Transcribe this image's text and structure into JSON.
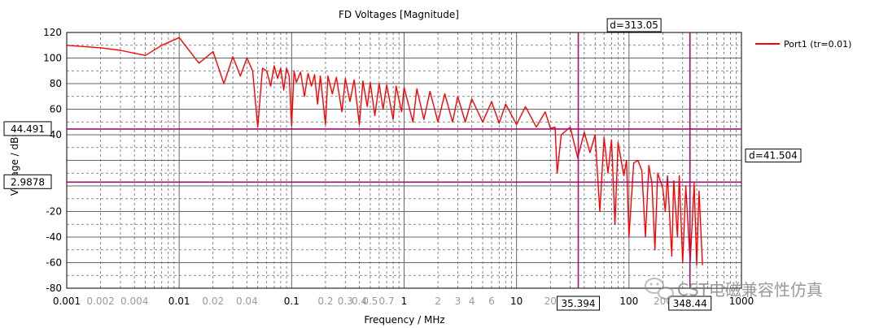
{
  "chart_data": {
    "type": "line",
    "title": "FD Voltages [Magnitude]",
    "xlabel": "Frequency / MHz",
    "ylabel": "Voltage / dBuV",
    "x_scale": "log",
    "xlim": [
      0.001,
      1000
    ],
    "ylim": [
      -80,
      120
    ],
    "grid": true,
    "legend_position": "top-right",
    "x_ticks": [
      {
        "value": 0.001,
        "label": "0.001",
        "major": true
      },
      {
        "value": 0.002,
        "label": "0.002",
        "major": false
      },
      {
        "value": 0.004,
        "label": "0.004",
        "major": false
      },
      {
        "value": 0.01,
        "label": "0.01",
        "major": true
      },
      {
        "value": 0.02,
        "label": "0.02",
        "major": false
      },
      {
        "value": 0.04,
        "label": "0.04",
        "major": false
      },
      {
        "value": 0.1,
        "label": "0.1",
        "major": true
      },
      {
        "value": 0.2,
        "label": "0.2",
        "major": false
      },
      {
        "value": 0.3,
        "label": "0.3",
        "major": false
      },
      {
        "value": 0.4,
        "label": "0.4",
        "major": false
      },
      {
        "value": 0.5,
        "label": "0.5",
        "major": false
      },
      {
        "value": 0.7,
        "label": "0.7",
        "major": false
      },
      {
        "value": 1,
        "label": "1",
        "major": true
      },
      {
        "value": 2,
        "label": "2",
        "major": false
      },
      {
        "value": 3,
        "label": "3",
        "major": false
      },
      {
        "value": 4,
        "label": "4",
        "major": false
      },
      {
        "value": 6,
        "label": "6",
        "major": false
      },
      {
        "value": 10,
        "label": "10",
        "major": true
      },
      {
        "value": 20,
        "label": "20",
        "major": false
      },
      {
        "value": 100,
        "label": "100",
        "major": true
      },
      {
        "value": 200,
        "label": "200",
        "major": false
      },
      {
        "value": 1000,
        "label": "1000",
        "major": true
      }
    ],
    "y_ticks": [
      {
        "value": 120,
        "label": "120"
      },
      {
        "value": 100,
        "label": "100"
      },
      {
        "value": 80,
        "label": "80"
      },
      {
        "value": 60,
        "label": "60"
      },
      {
        "value": 40,
        "label": "40"
      },
      {
        "value": 20,
        "label": ""
      },
      {
        "value": 0,
        "label": ""
      },
      {
        "value": -20,
        "label": "-20"
      },
      {
        "value": -40,
        "label": "-40"
      },
      {
        "value": -60,
        "label": "-60"
      },
      {
        "value": -80,
        "label": "-80"
      }
    ],
    "series": [
      {
        "name": "Port1 (tr=0.01)",
        "color": "#ff0000",
        "points": [
          [
            0.001,
            110
          ],
          [
            0.002,
            108
          ],
          [
            0.003,
            106
          ],
          [
            0.005,
            102
          ],
          [
            0.007,
            110
          ],
          [
            0.01,
            116
          ],
          [
            0.015,
            96
          ],
          [
            0.02,
            105
          ],
          [
            0.025,
            80
          ],
          [
            0.03,
            101
          ],
          [
            0.035,
            86
          ],
          [
            0.04,
            100
          ],
          [
            0.045,
            90
          ],
          [
            0.05,
            46
          ],
          [
            0.055,
            92
          ],
          [
            0.06,
            90
          ],
          [
            0.065,
            78
          ],
          [
            0.07,
            94
          ],
          [
            0.075,
            84
          ],
          [
            0.08,
            92
          ],
          [
            0.085,
            75
          ],
          [
            0.09,
            92
          ],
          [
            0.095,
            86
          ],
          [
            0.1,
            47
          ],
          [
            0.105,
            90
          ],
          [
            0.11,
            81
          ],
          [
            0.12,
            89
          ],
          [
            0.13,
            70
          ],
          [
            0.14,
            88
          ],
          [
            0.15,
            78
          ],
          [
            0.16,
            87
          ],
          [
            0.17,
            64
          ],
          [
            0.18,
            86
          ],
          [
            0.2,
            48
          ],
          [
            0.21,
            86
          ],
          [
            0.23,
            72
          ],
          [
            0.25,
            85
          ],
          [
            0.28,
            58
          ],
          [
            0.3,
            84
          ],
          [
            0.33,
            66
          ],
          [
            0.36,
            83
          ],
          [
            0.4,
            48
          ],
          [
            0.43,
            82
          ],
          [
            0.47,
            62
          ],
          [
            0.5,
            81
          ],
          [
            0.55,
            55
          ],
          [
            0.6,
            80
          ],
          [
            0.65,
            60
          ],
          [
            0.7,
            79
          ],
          [
            0.8,
            52
          ],
          [
            0.85,
            78
          ],
          [
            0.95,
            58
          ],
          [
            1,
            77
          ],
          [
            1.2,
            50
          ],
          [
            1.3,
            76
          ],
          [
            1.5,
            52
          ],
          [
            1.7,
            74
          ],
          [
            2,
            50
          ],
          [
            2.3,
            72
          ],
          [
            2.7,
            50
          ],
          [
            3,
            70
          ],
          [
            3.5,
            50
          ],
          [
            4,
            68
          ],
          [
            5,
            50
          ],
          [
            6,
            66
          ],
          [
            7,
            49
          ],
          [
            8,
            64
          ],
          [
            10,
            48
          ],
          [
            12,
            62
          ],
          [
            15,
            46
          ],
          [
            18,
            58
          ],
          [
            20,
            45
          ],
          [
            22,
            46
          ],
          [
            23,
            10
          ],
          [
            25,
            40
          ],
          [
            30,
            46
          ],
          [
            35,
            22
          ],
          [
            40,
            42
          ],
          [
            45,
            26
          ],
          [
            50,
            40
          ],
          [
            55,
            -20
          ],
          [
            60,
            38
          ],
          [
            65,
            10
          ],
          [
            70,
            36
          ],
          [
            75,
            -30
          ],
          [
            80,
            34
          ],
          [
            90,
            8
          ],
          [
            95,
            20
          ],
          [
            100,
            -40
          ],
          [
            110,
            18
          ],
          [
            120,
            20
          ],
          [
            130,
            12
          ],
          [
            140,
            -40
          ],
          [
            150,
            16
          ],
          [
            160,
            2
          ],
          [
            170,
            -50
          ],
          [
            180,
            10
          ],
          [
            200,
            -2
          ],
          [
            210,
            -20
          ],
          [
            220,
            8
          ],
          [
            240,
            -55
          ],
          [
            250,
            4
          ],
          [
            270,
            -40
          ],
          [
            280,
            8
          ],
          [
            300,
            -60
          ],
          [
            320,
            0
          ],
          [
            350,
            -60
          ],
          [
            380,
            2
          ],
          [
            400,
            -62
          ],
          [
            420,
            -4
          ],
          [
            450,
            -62
          ]
        ]
      }
    ],
    "cursors": {
      "vertical": [
        {
          "value": 35.394,
          "label": "35.394"
        },
        {
          "value": 348.44,
          "label": "348.44"
        }
      ],
      "horizontal": [
        {
          "value": 44.491,
          "label": "44.491"
        },
        {
          "value": 2.9878,
          "label": "2.9878"
        }
      ],
      "dx_label": "d=313.05",
      "dy_label": "d=41.504"
    },
    "colors": {
      "cursor": "#a0106e",
      "grid": "#666666",
      "axis": "#000000",
      "series": "#ff0000"
    }
  },
  "watermark": {
    "text": "CST电磁兼容性仿真",
    "icon": "wechat-icon"
  }
}
